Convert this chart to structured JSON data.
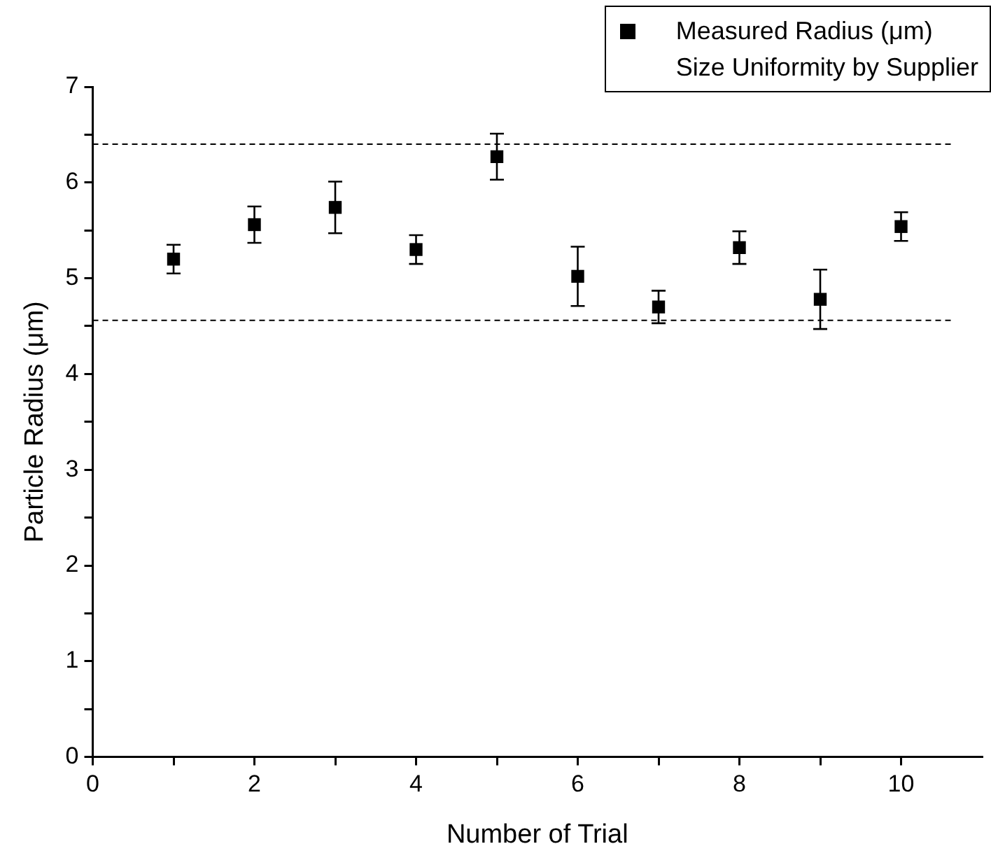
{
  "chart_data": {
    "type": "scatter",
    "xlabel": "Number of Trial",
    "ylabel": "Particle Radius (μm)",
    "x": [
      1,
      2,
      3,
      4,
      5,
      6,
      7,
      8,
      9,
      10
    ],
    "series": [
      {
        "name": "Measured Radius (μm)",
        "color": "#000000",
        "values": [
          5.2,
          5.56,
          5.74,
          5.3,
          6.27,
          5.02,
          4.7,
          5.32,
          4.78,
          5.54
        ],
        "errors": [
          0.15,
          0.19,
          0.27,
          0.15,
          0.24,
          0.31,
          0.17,
          0.17,
          0.31,
          0.15
        ]
      }
    ],
    "ref_lines": [
      {
        "axis": "y",
        "value": 6.4,
        "label": "Size Uniformity by Supplier",
        "color": "#000000",
        "line_style": "dashed"
      },
      {
        "axis": "y",
        "value": 4.56,
        "color": "#000000",
        "line_style": "dashed"
      }
    ],
    "xlim": [
      0,
      11
    ],
    "xticks": [
      0,
      {
        "value": 1,
        "label": null
      },
      2,
      {
        "value": 3,
        "label": null
      },
      4,
      {
        "value": 5,
        "label": null
      },
      6,
      {
        "value": 7,
        "label": null
      },
      8,
      {
        "value": 9,
        "label": null
      },
      10
    ],
    "ylim": [
      0,
      7
    ],
    "yticks": [
      0,
      {
        "value": 0.5,
        "label": null
      },
      1,
      {
        "value": 1.5,
        "label": null
      },
      2,
      {
        "value": 2.5,
        "label": null
      },
      3,
      {
        "value": 3.5,
        "label": null
      },
      4,
      {
        "value": 4.5,
        "label": null
      },
      5,
      {
        "value": 5.5,
        "label": null
      },
      6,
      {
        "value": 6.5,
        "label": null
      },
      7
    ],
    "marker": "square",
    "legend": "top right"
  }
}
